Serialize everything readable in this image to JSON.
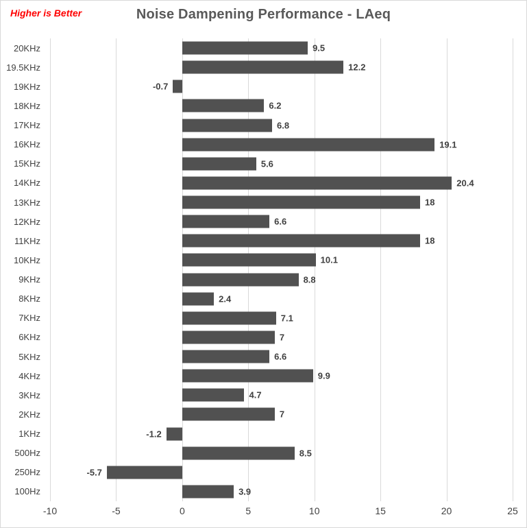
{
  "note": {
    "text": "Higher is Better",
    "color": "#ff0000"
  },
  "title": "Noise Dampening Performance - LAeq",
  "chart_data": {
    "type": "bar",
    "orientation": "horizontal",
    "title": "Noise Dampening Performance - LAeq",
    "annotation": "Higher is Better",
    "categories": [
      "20KHz",
      "19.5KHz",
      "19KHz",
      "18KHz",
      "17KHz",
      "16KHz",
      "15KHz",
      "14KHz",
      "13KHz",
      "12KHz",
      "11KHz",
      "10KHz",
      "9KHz",
      "8KHz",
      "7KHz",
      "6KHz",
      "5KHz",
      "4KHz",
      "3KHz",
      "2KHz",
      "1KHz",
      "500Hz",
      "250Hz",
      "100Hz"
    ],
    "values": [
      9.5,
      12.2,
      -0.7,
      6.2,
      6.8,
      19.1,
      5.6,
      20.4,
      18,
      6.6,
      18,
      10.1,
      8.8,
      2.4,
      7.1,
      7,
      6.6,
      9.9,
      4.7,
      7,
      -1.2,
      8.5,
      -5.7,
      3.9
    ],
    "value_labels": [
      "9.5",
      "12.2",
      "-0.7",
      "6.2",
      "6.8",
      "19.1",
      "5.6",
      "20.4",
      "18",
      "6.6",
      "18",
      "10.1",
      "8.8",
      "2.4",
      "7.1",
      "7",
      "6.6",
      "9.9",
      "4.7",
      "7",
      "-1.2",
      "8.5",
      "-5.7",
      "3.9"
    ],
    "xlabel": "",
    "ylabel": "",
    "xlim": [
      -10,
      25
    ],
    "xticks": [
      -10,
      -5,
      0,
      5,
      10,
      15,
      20,
      25
    ],
    "xtick_labels": [
      "-10",
      "-5",
      "0",
      "5",
      "10",
      "15",
      "20",
      "25"
    ],
    "grid": true,
    "legend": false,
    "bar_color": "#515151",
    "gridline_color": "#d9d9d9",
    "label_color": "#404040",
    "title_color": "#595959"
  }
}
